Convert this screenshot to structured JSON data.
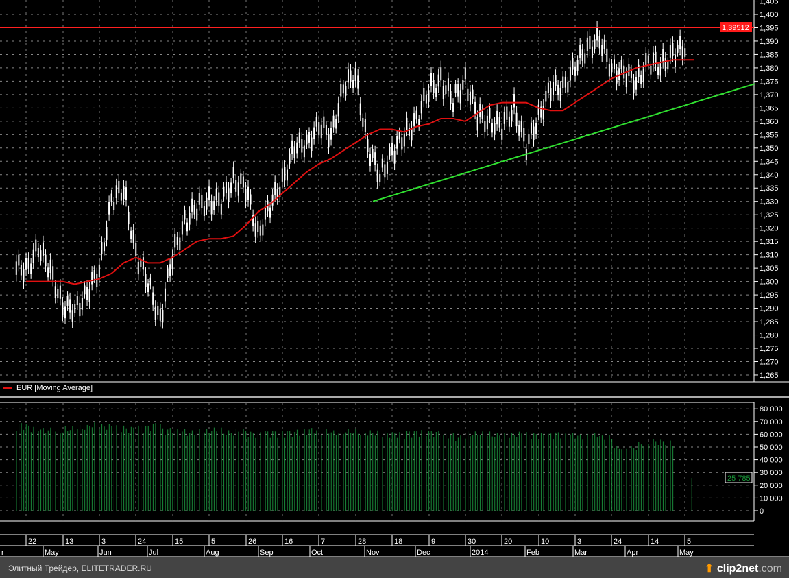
{
  "chart_data": [
    {
      "type": "line",
      "title": "",
      "series_label": "EUR [Moving Average]",
      "ylim": [
        1.2625,
        1.4055
      ],
      "yticks": [
        "1,265",
        "1,270",
        "1,275",
        "1,280",
        "1,285",
        "1,290",
        "1,295",
        "1,300",
        "1,305",
        "1,310",
        "1,315",
        "1,320",
        "1,325",
        "1,330",
        "1,335",
        "1,340",
        "1,345",
        "1,350",
        "1,355",
        "1,360",
        "1,365",
        "1,370",
        "1,375",
        "1,380",
        "1,385",
        "1,390",
        "1,395",
        "1,400",
        "1,405"
      ],
      "x": [
        "2013-04-22",
        "2013-04-29",
        "2013-05-06",
        "2013-05-13",
        "2013-05-20",
        "2013-05-27",
        "2013-06-03",
        "2013-06-10",
        "2013-06-17",
        "2013-06-24",
        "2013-07-01",
        "2013-07-08",
        "2013-07-15",
        "2013-07-22",
        "2013-07-29",
        "2013-08-05",
        "2013-08-12",
        "2013-08-19",
        "2013-08-26",
        "2013-09-02",
        "2013-09-09",
        "2013-09-16",
        "2013-09-23",
        "2013-09-30",
        "2013-10-07",
        "2013-10-14",
        "2013-10-21",
        "2013-10-28",
        "2013-11-04",
        "2013-11-11",
        "2013-11-18",
        "2013-11-25",
        "2013-12-02",
        "2013-12-09",
        "2013-12-16",
        "2013-12-23",
        "2013-12-30",
        "2014-01-06",
        "2014-01-13",
        "2014-01-20",
        "2014-01-27",
        "2014-02-03",
        "2014-02-10",
        "2014-02-17",
        "2014-02-24",
        "2014-03-03",
        "2014-03-10",
        "2014-03-17",
        "2014-03-24",
        "2014-03-31",
        "2014-04-07",
        "2014-04-14",
        "2014-04-21",
        "2014-04-28",
        "2014-05-05"
      ],
      "series": [
        {
          "name": "EUR",
          "color": "#ffffff",
          "values": [
            1.305,
            1.312,
            1.305,
            1.29,
            1.29,
            1.295,
            1.305,
            1.33,
            1.335,
            1.31,
            1.3,
            1.285,
            1.31,
            1.322,
            1.328,
            1.33,
            1.33,
            1.338,
            1.335,
            1.318,
            1.328,
            1.338,
            1.35,
            1.352,
            1.358,
            1.355,
            1.372,
            1.378,
            1.35,
            1.34,
            1.348,
            1.355,
            1.36,
            1.372,
            1.375,
            1.368,
            1.375,
            1.362,
            1.36,
            1.358,
            1.365,
            1.35,
            1.362,
            1.372,
            1.373,
            1.38,
            1.388,
            1.39,
            1.38,
            1.378,
            1.375,
            1.382,
            1.381,
            1.385,
            1.388
          ]
        },
        {
          "name": "Moving Average",
          "color": "#e01010",
          "values": [
            1.3,
            1.3,
            1.3,
            1.3,
            1.299,
            1.3,
            1.301,
            1.303,
            1.307,
            1.309,
            1.307,
            1.307,
            1.309,
            1.312,
            1.315,
            1.316,
            1.316,
            1.317,
            1.321,
            1.326,
            1.329,
            1.333,
            1.337,
            1.341,
            1.344,
            1.346,
            1.349,
            1.352,
            1.355,
            1.357,
            1.357,
            1.356,
            1.358,
            1.359,
            1.361,
            1.361,
            1.36,
            1.363,
            1.366,
            1.367,
            1.367,
            1.367,
            1.365,
            1.364,
            1.364,
            1.367,
            1.37,
            1.373,
            1.376,
            1.378,
            1.38,
            1.381,
            1.382,
            1.383,
            1.383
          ]
        }
      ],
      "hline": {
        "value": 1.39512,
        "label": "1,39512",
        "color": "#ff2020"
      },
      "trendline": {
        "from": [
          "2013-11-07",
          1.33
        ],
        "to": [
          "2014-06-14",
          1.374
        ],
        "color": "#30e030"
      }
    },
    {
      "type": "bar",
      "ylim": [
        -4000,
        85000
      ],
      "yticks": [
        "0",
        "10 000",
        "20 000",
        "30 000",
        "40 000",
        "50 000",
        "60 000",
        "70 000",
        "80 000"
      ],
      "color": "#1a8a3a",
      "values": [
        68000,
        66000,
        64000,
        63000,
        65000,
        66000,
        68000,
        67000,
        66000,
        65000,
        66000,
        68000,
        64000,
        63000,
        62000,
        63000,
        64000,
        62000,
        63000,
        61000,
        62000,
        62000,
        62000,
        63000,
        64000,
        63000,
        62000,
        63000,
        62000,
        62000,
        61000,
        61000,
        62000,
        63000,
        62000,
        60000,
        58000,
        61000,
        61000,
        60000,
        60000,
        61000,
        60000,
        60000,
        61000,
        60000,
        59000,
        60000,
        58000,
        50000,
        50000,
        53000,
        55000,
        55000,
        25785
      ],
      "last_label": "25 785"
    }
  ],
  "x_axis": {
    "days": [
      {
        "label": "22"
      },
      {
        "label": "13"
      },
      {
        "label": "3"
      },
      {
        "label": "24"
      },
      {
        "label": "15"
      },
      {
        "label": "5"
      },
      {
        "label": "26"
      },
      {
        "label": "16"
      },
      {
        "label": "7"
      },
      {
        "label": "28"
      },
      {
        "label": "18"
      },
      {
        "label": "9"
      },
      {
        "label": "30"
      },
      {
        "label": "20"
      },
      {
        "label": "10"
      },
      {
        "label": "3"
      },
      {
        "label": "24"
      },
      {
        "label": "14"
      },
      {
        "label": "5"
      }
    ],
    "months": [
      {
        "label": "r"
      },
      {
        "label": "May"
      },
      {
        "label": "Jun"
      },
      {
        "label": "Jul"
      },
      {
        "label": "Aug"
      },
      {
        "label": "Sep"
      },
      {
        "label": "Oct"
      },
      {
        "label": "Nov"
      },
      {
        "label": "Dec"
      },
      {
        "label": "2014"
      },
      {
        "label": "Feb"
      },
      {
        "label": "Mar"
      },
      {
        "label": "Apr"
      },
      {
        "label": "May"
      }
    ]
  },
  "footer": {
    "text": "Элитный Трейдер, ELITETRADER.RU",
    "logo_main": "clip2net",
    "logo_tld": ".com"
  }
}
